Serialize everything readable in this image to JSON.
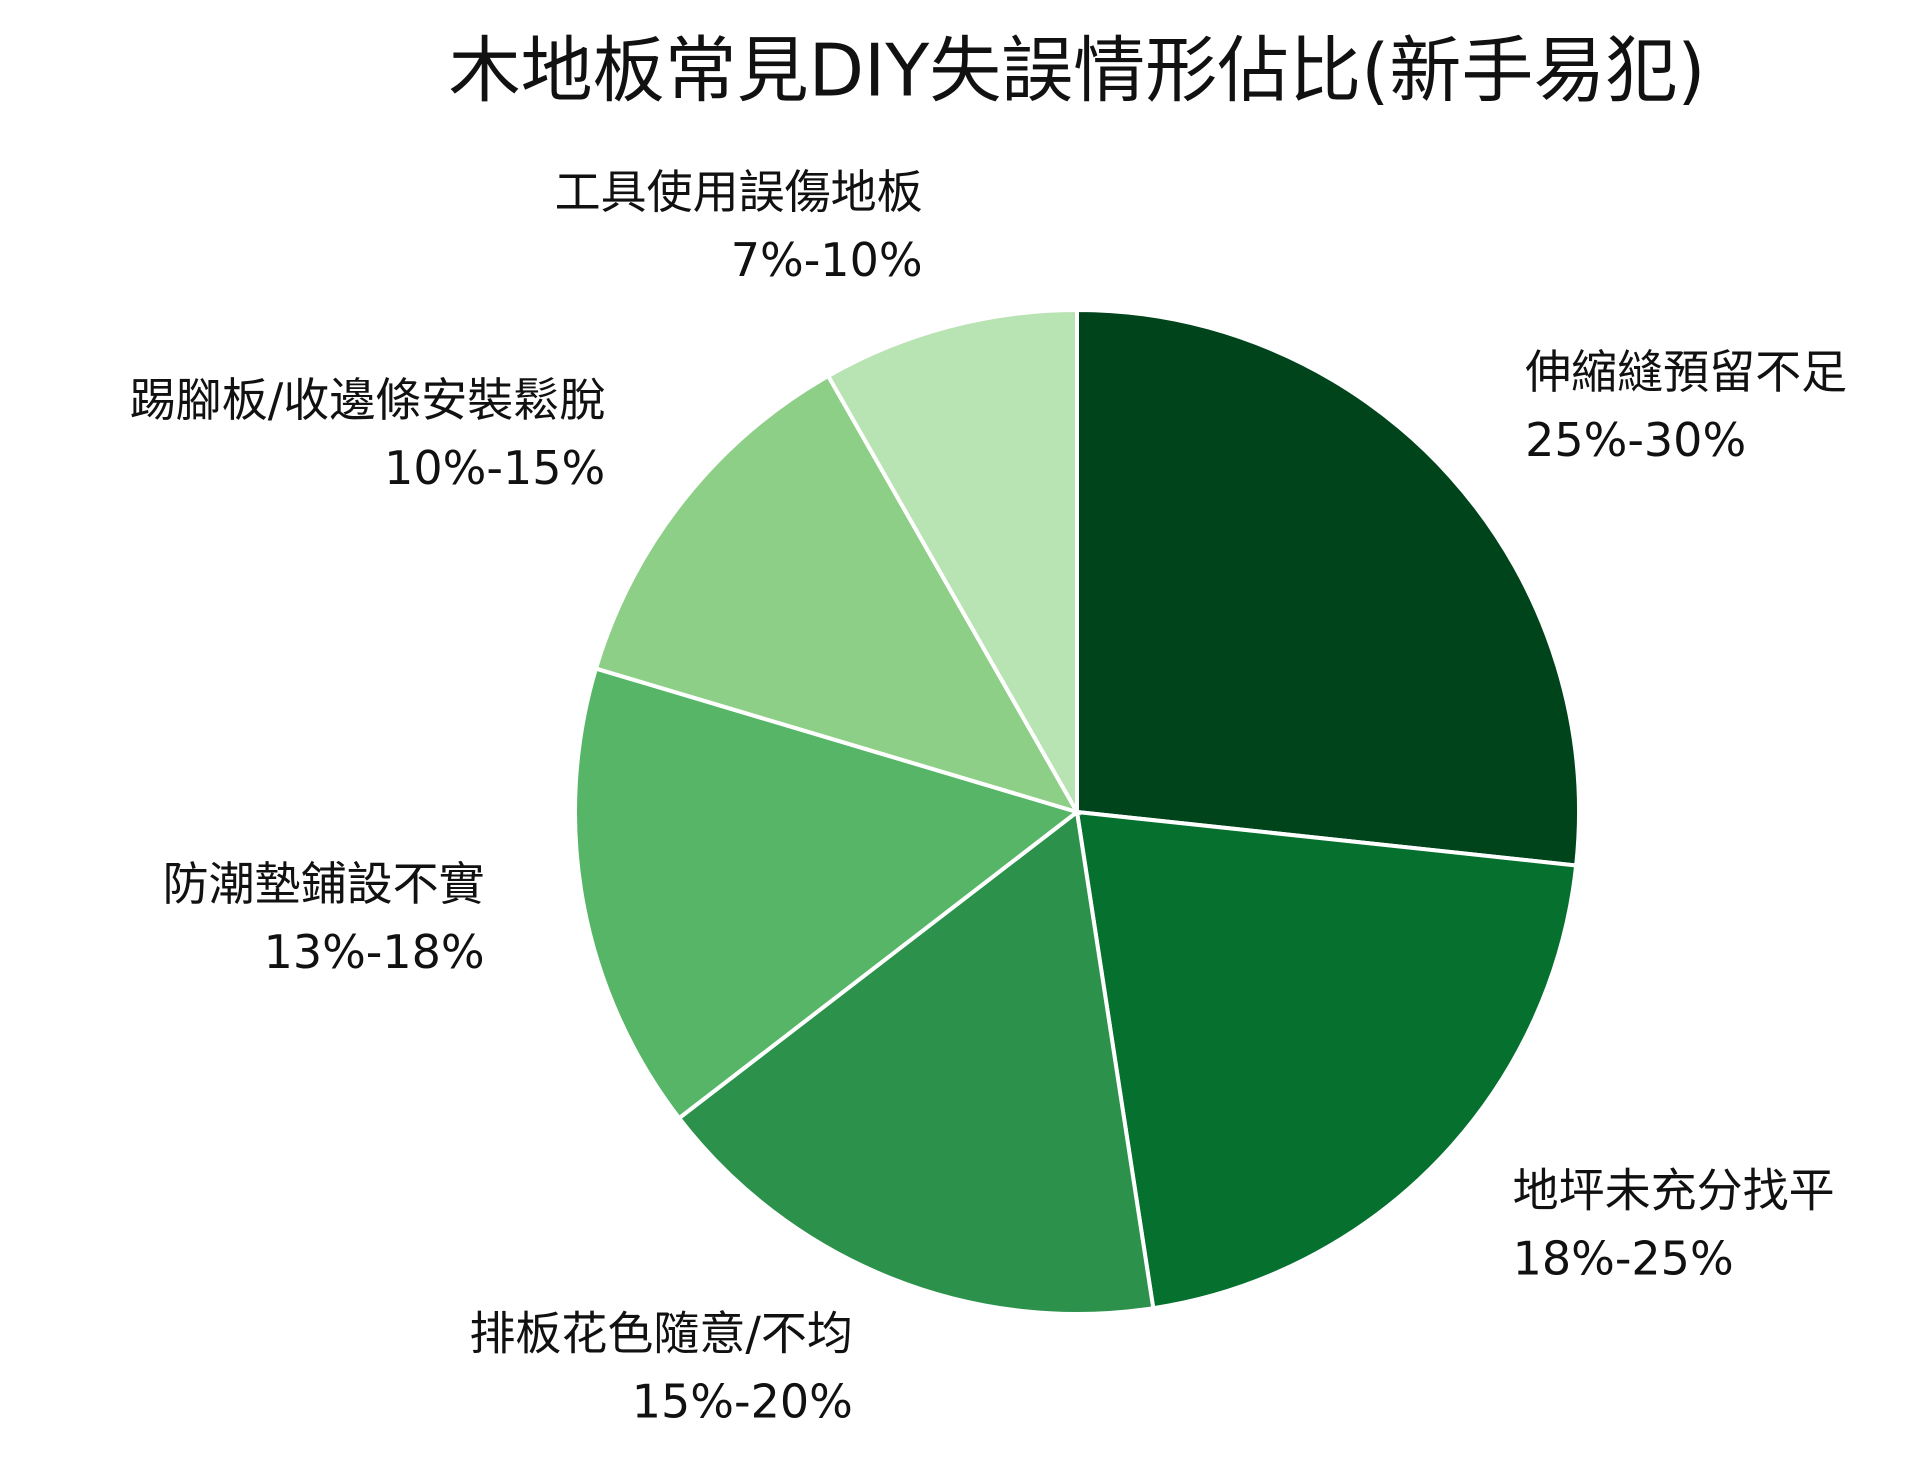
{
  "chart_data": {
    "type": "pie",
    "title": "木地板常見DIY失誤情形佔比(新手易犯)",
    "categories": [
      "伸縮縫預留不足",
      "地坪未充分找平",
      "排板花色隨意/不均",
      "防潮墊鋪設不實",
      "踢腳板/收邊條安裝鬆脫",
      "工具使用誤傷地板"
    ],
    "values": [
      27.5,
      21.5,
      17.5,
      15.5,
      12.5,
      8.5
    ],
    "value_labels": [
      "25%-30%",
      "18%-25%",
      "15%-20%",
      "13%-18%",
      "10%-15%",
      "7%-10%"
    ],
    "colors": [
      "#00441b",
      "#06702f",
      "#2c924b",
      "#56b567",
      "#8ecf87",
      "#b8e3b2"
    ]
  }
}
